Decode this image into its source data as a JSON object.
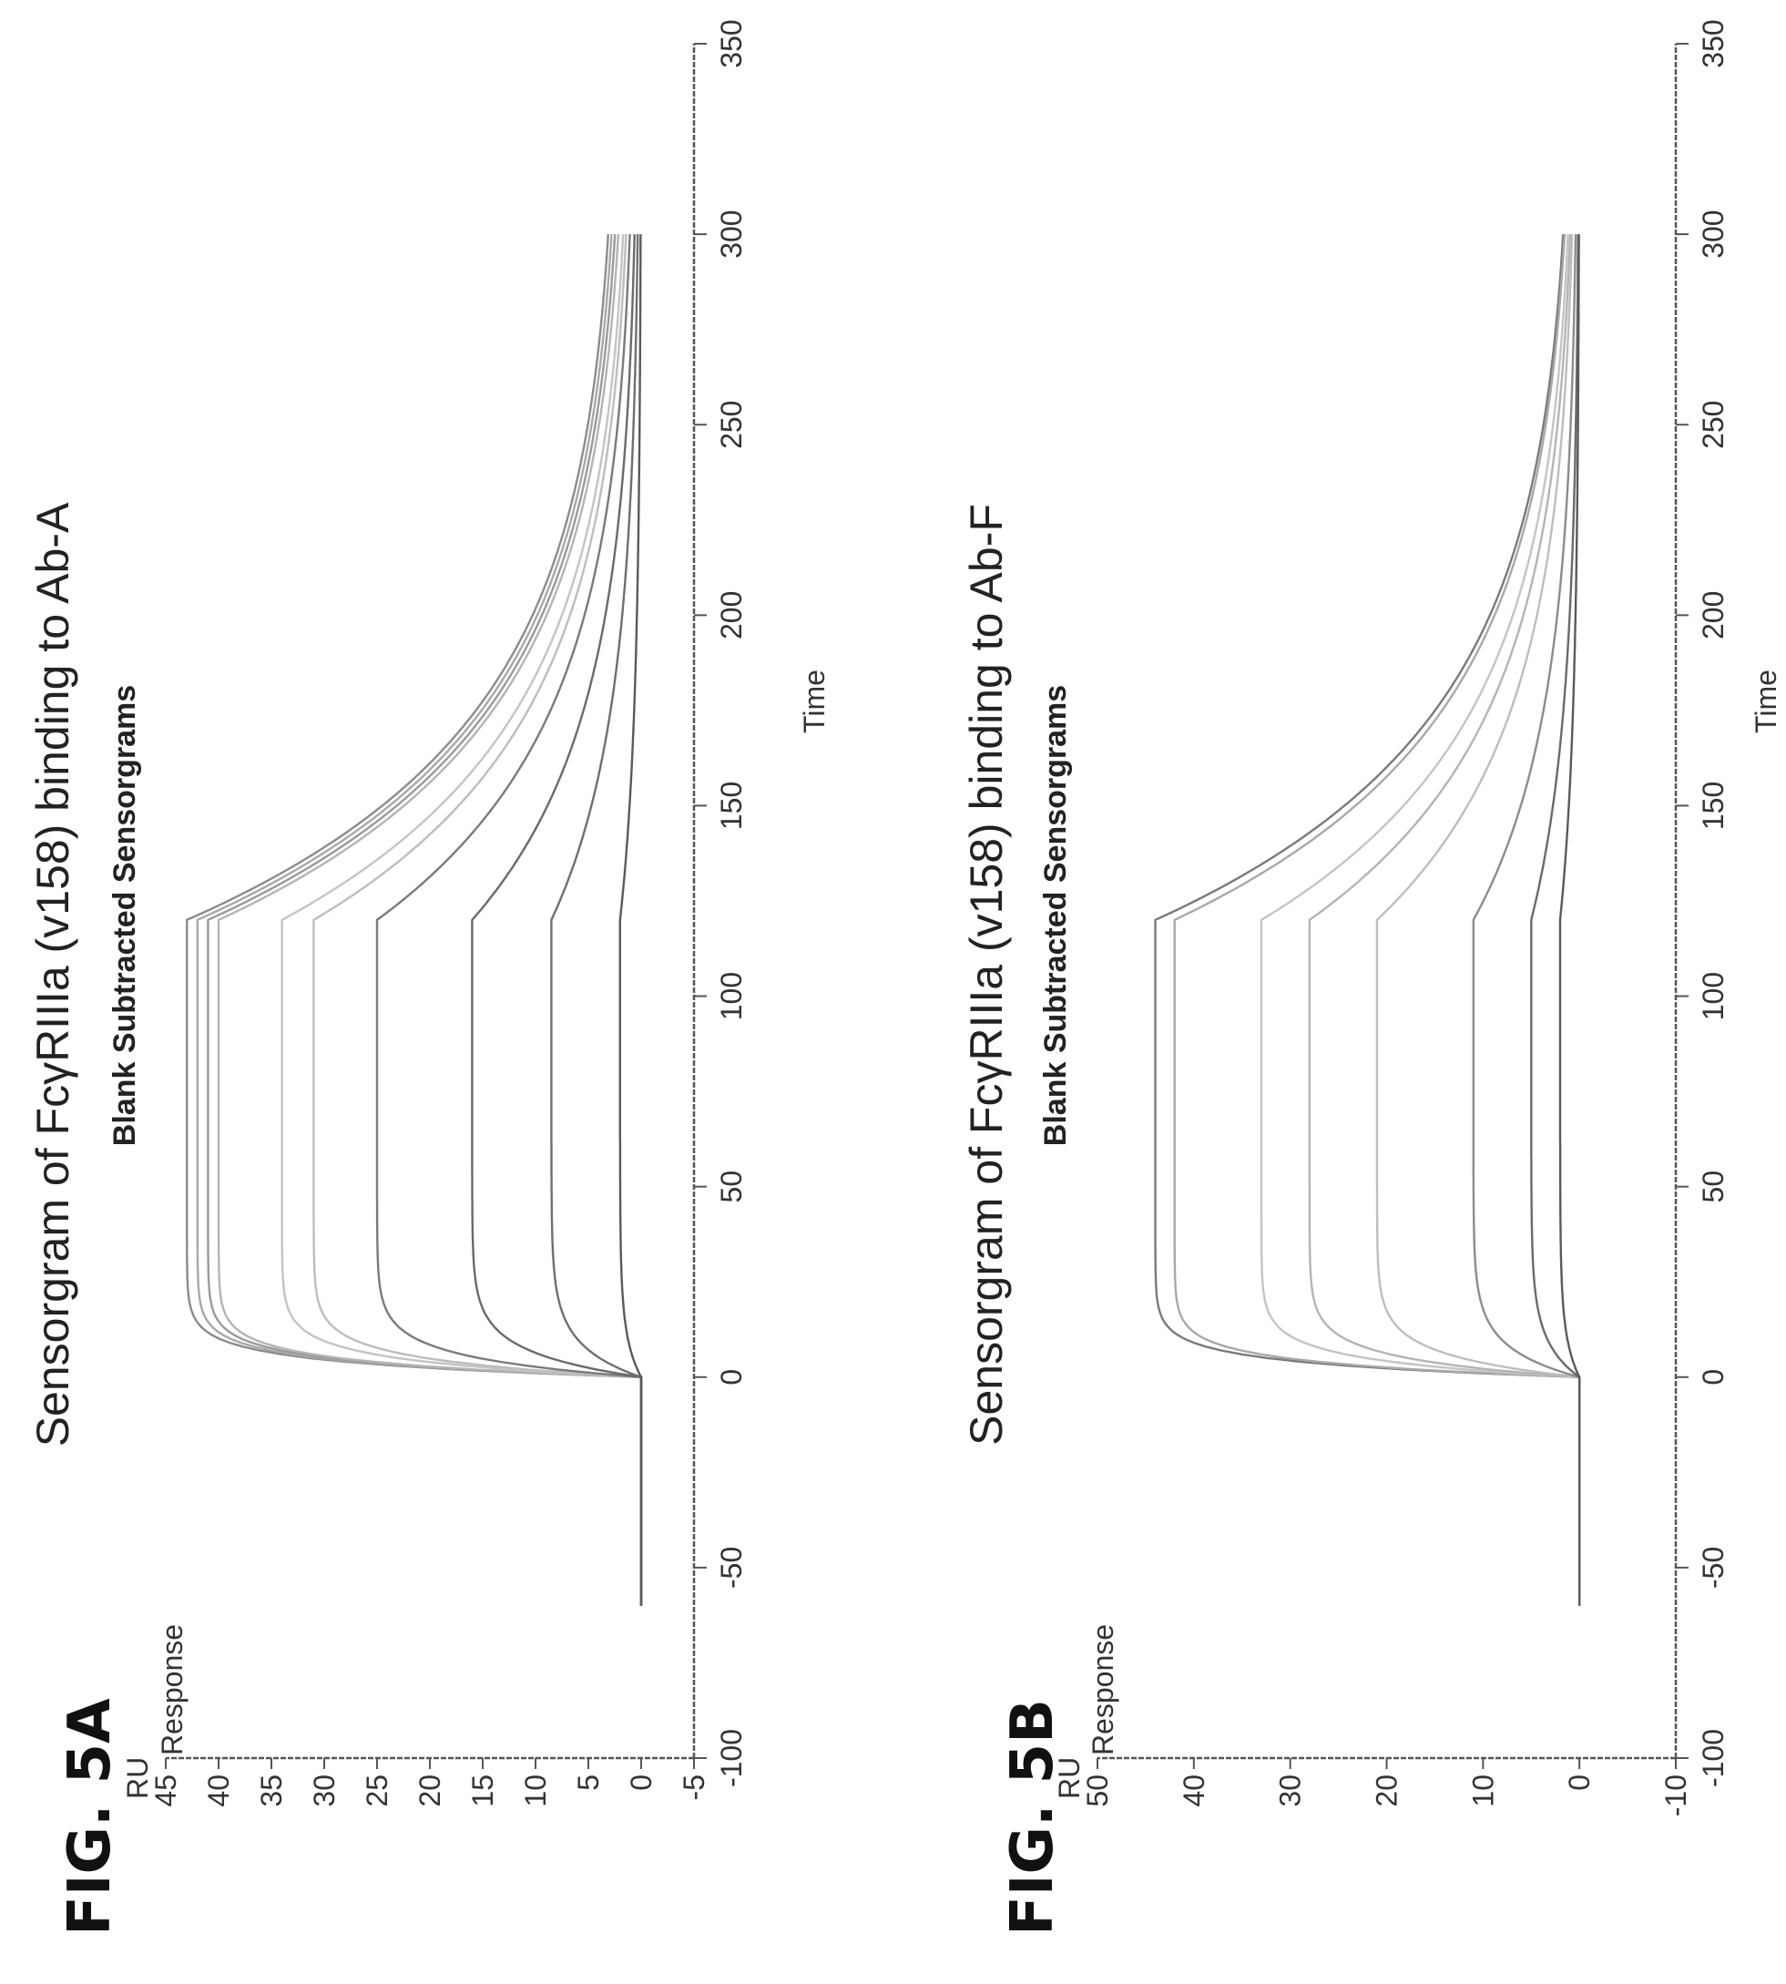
{
  "figures": [
    {
      "id": "5A",
      "label": "FIG. 5A"
    },
    {
      "id": "5B",
      "label": "FIG. 5B"
    }
  ],
  "chart_data": [
    {
      "type": "line",
      "figure": "FIG. 5A",
      "title": "Sensorgram of FcγRIIIa (v158) binding to Ab-A",
      "subtitle": "Blank Subtracted Sensorgrams",
      "xlabel": "Time",
      "ylabel": "Response",
      "yunit": "RU",
      "xlim": [
        -100,
        350
      ],
      "ylim": [
        -5,
        45
      ],
      "xticks": [
        -100,
        -50,
        0,
        50,
        100,
        150,
        200,
        250,
        300,
        350
      ],
      "yticks": [
        -5,
        0,
        5,
        10,
        15,
        20,
        25,
        30,
        35,
        40,
        45
      ],
      "injection": {
        "start": 0,
        "end": 120,
        "final": 300,
        "baseline_start": -60
      },
      "series": [
        {
          "peak": 43.0,
          "end": 2.0,
          "color": "#8c8c8c"
        },
        {
          "peak": 42.0,
          "end": 1.7,
          "color": "#a8a8a8"
        },
        {
          "peak": 41.0,
          "end": 1.4,
          "color": "#9a9a9a"
        },
        {
          "peak": 40.0,
          "end": 1.1,
          "color": "#b4b4b4"
        },
        {
          "peak": 34.0,
          "end": 0.8,
          "color": "#c4c4c4"
        },
        {
          "peak": 31.0,
          "end": 0.6,
          "color": "#bdbdbd"
        },
        {
          "peak": 25.0,
          "end": 0.4,
          "color": "#7a7a7a"
        },
        {
          "peak": 16.0,
          "end": 0.2,
          "color": "#6a6a6a"
        },
        {
          "peak": 8.5,
          "end": 0.1,
          "color": "#6f6f6f"
        },
        {
          "peak": 2.0,
          "end": 0.0,
          "color": "#5a5a5a"
        }
      ]
    },
    {
      "type": "line",
      "figure": "FIG. 5B",
      "title": "Sensorgram of FcγRIIIa (v158) binding to Ab-F",
      "subtitle": "Blank Subtracted Sensorgrams",
      "xlabel": "Time",
      "ylabel": "Response",
      "yunit": "RU",
      "xlim": [
        -100,
        350
      ],
      "ylim": [
        -10,
        50
      ],
      "xticks": [
        -100,
        -50,
        0,
        50,
        100,
        150,
        200,
        250,
        300,
        350
      ],
      "yticks": [
        -10,
        0,
        10,
        20,
        30,
        40,
        50
      ],
      "injection": {
        "start": 0,
        "end": 120,
        "final": 300,
        "baseline_start": -60
      },
      "series": [
        {
          "peak": 44.0,
          "end": 0.5,
          "color": "#7a7a7a"
        },
        {
          "peak": 42.0,
          "end": 0.4,
          "color": "#a8a8a8"
        },
        {
          "peak": 33.0,
          "end": 0.3,
          "color": "#c4c4c4"
        },
        {
          "peak": 28.0,
          "end": 0.2,
          "color": "#b4b4b4"
        },
        {
          "peak": 21.0,
          "end": 0.2,
          "color": "#bdbdbd"
        },
        {
          "peak": 11.0,
          "end": 0.1,
          "color": "#8c8c8c"
        },
        {
          "peak": 5.0,
          "end": 0.0,
          "color": "#6a6a6a"
        },
        {
          "peak": 2.0,
          "end": 0.0,
          "color": "#5a5a5a"
        }
      ]
    }
  ]
}
